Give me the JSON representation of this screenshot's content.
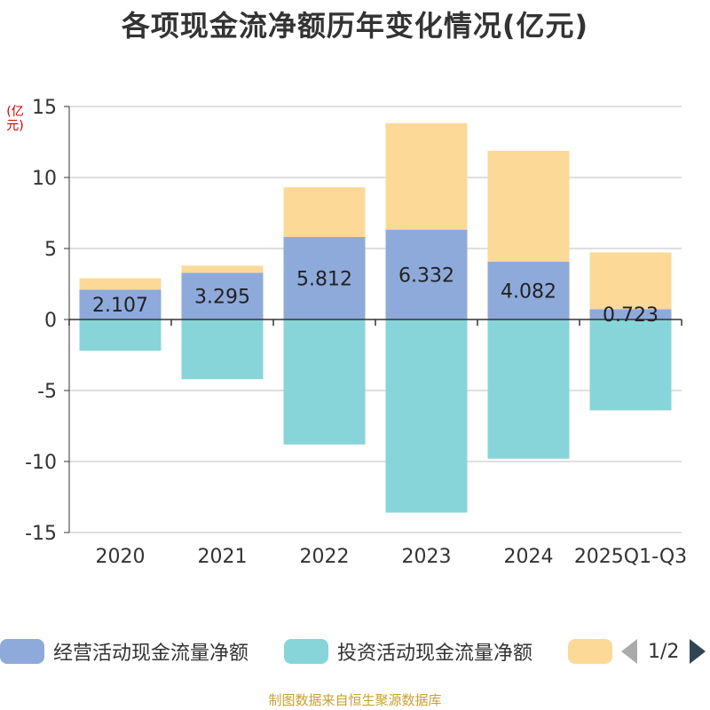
{
  "title": "各项现金流净额历年变化情况(亿元)",
  "unit": "(亿元)",
  "source": "制图数据来自恒生聚源数据库",
  "legend": {
    "items": [
      {
        "label": "经营活动现金流量净额",
        "color": "#8eaadb"
      },
      {
        "label": "投资活动现金流量净额",
        "color": "#87d5d8"
      },
      {
        "label": "",
        "color": "#fdd998"
      }
    ],
    "page_text": "1/2"
  },
  "chart_data": {
    "type": "bar",
    "stacked": true,
    "title": "各项现金流净额历年变化情况(亿元)",
    "ylabel": "(亿元)",
    "ylim": [
      -15,
      15
    ],
    "yticks": [
      15,
      10,
      5,
      0,
      -5,
      -10,
      -15
    ],
    "categories": [
      "2020",
      "2021",
      "2022",
      "2023",
      "2024",
      "2025Q1-Q3"
    ],
    "series": [
      {
        "name": "经营活动现金流量净额",
        "color": "#8eaadb",
        "values": [
          2.107,
          3.295,
          5.812,
          6.332,
          4.082,
          0.723
        ],
        "labels": [
          "2.107",
          "3.295",
          "5.812",
          "6.332",
          "4.082",
          "0.723"
        ]
      },
      {
        "name": "投资活动现金流量净额",
        "color": "#87d5d8",
        "values": [
          -2.2,
          -4.2,
          -8.8,
          -13.6,
          -9.8,
          -6.4
        ]
      },
      {
        "name": "",
        "color": "#fdd998",
        "values": [
          0.8,
          0.5,
          3.5,
          7.5,
          7.8,
          4.0
        ]
      }
    ]
  }
}
